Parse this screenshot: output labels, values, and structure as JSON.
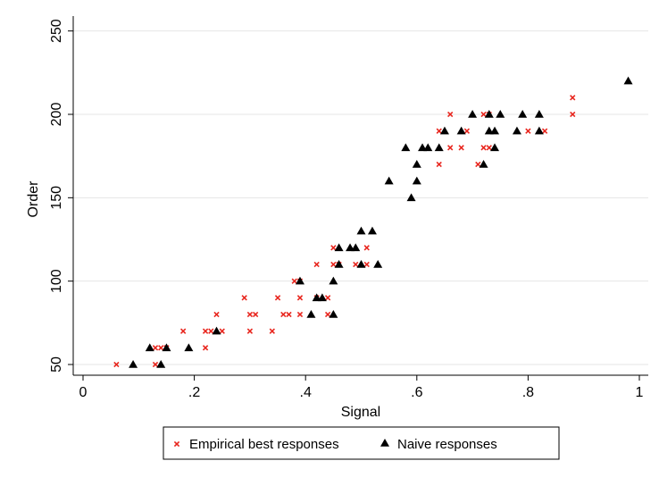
{
  "chart_data": {
    "type": "scatter",
    "xlabel": "Signal",
    "ylabel": "Order",
    "xlim": [
      0,
      1
    ],
    "ylim": [
      45,
      255
    ],
    "x_ticks": [
      0,
      0.2,
      0.4,
      0.6,
      0.8,
      1
    ],
    "x_tick_labels": [
      "0",
      ".2",
      ".4",
      ".6",
      ".8",
      "1"
    ],
    "y_ticks": [
      50,
      100,
      150,
      200,
      250
    ],
    "y_tick_labels": [
      "50",
      "100",
      "150",
      "200",
      "250"
    ],
    "grid": "horizontal",
    "legend_position": "bottom",
    "series": [
      {
        "name": "Empirical best responses",
        "marker": "x",
        "color": "#e8261e",
        "points": [
          [
            0.06,
            50
          ],
          [
            0.13,
            50
          ],
          [
            0.13,
            60
          ],
          [
            0.14,
            60
          ],
          [
            0.15,
            60
          ],
          [
            0.18,
            70
          ],
          [
            0.22,
            60
          ],
          [
            0.22,
            70
          ],
          [
            0.23,
            70
          ],
          [
            0.24,
            80
          ],
          [
            0.25,
            70
          ],
          [
            0.29,
            90
          ],
          [
            0.3,
            70
          ],
          [
            0.3,
            80
          ],
          [
            0.31,
            80
          ],
          [
            0.34,
            70
          ],
          [
            0.35,
            90
          ],
          [
            0.36,
            80
          ],
          [
            0.37,
            80
          ],
          [
            0.38,
            100
          ],
          [
            0.39,
            90
          ],
          [
            0.39,
            100
          ],
          [
            0.39,
            80
          ],
          [
            0.42,
            110
          ],
          [
            0.42,
            90
          ],
          [
            0.44,
            90
          ],
          [
            0.44,
            80
          ],
          [
            0.45,
            120
          ],
          [
            0.45,
            110
          ],
          [
            0.46,
            110
          ],
          [
            0.49,
            110
          ],
          [
            0.51,
            120
          ],
          [
            0.51,
            110
          ],
          [
            0.64,
            190
          ],
          [
            0.64,
            170
          ],
          [
            0.66,
            200
          ],
          [
            0.66,
            180
          ],
          [
            0.68,
            180
          ],
          [
            0.69,
            190
          ],
          [
            0.71,
            170
          ],
          [
            0.72,
            200
          ],
          [
            0.72,
            180
          ],
          [
            0.73,
            180
          ],
          [
            0.73,
            200
          ],
          [
            0.8,
            190
          ],
          [
            0.83,
            190
          ],
          [
            0.88,
            210
          ],
          [
            0.88,
            200
          ]
        ]
      },
      {
        "name": "Naive responses",
        "marker": "triangle",
        "color": "#000000",
        "points": [
          [
            0.09,
            50
          ],
          [
            0.12,
            60
          ],
          [
            0.14,
            50
          ],
          [
            0.15,
            60
          ],
          [
            0.19,
            60
          ],
          [
            0.24,
            70
          ],
          [
            0.39,
            100
          ],
          [
            0.41,
            80
          ],
          [
            0.42,
            90
          ],
          [
            0.43,
            90
          ],
          [
            0.45,
            80
          ],
          [
            0.45,
            100
          ],
          [
            0.46,
            120
          ],
          [
            0.46,
            110
          ],
          [
            0.48,
            120
          ],
          [
            0.49,
            120
          ],
          [
            0.5,
            110
          ],
          [
            0.5,
            130
          ],
          [
            0.52,
            130
          ],
          [
            0.53,
            110
          ],
          [
            0.55,
            160
          ],
          [
            0.58,
            180
          ],
          [
            0.59,
            150
          ],
          [
            0.6,
            160
          ],
          [
            0.6,
            170
          ],
          [
            0.61,
            180
          ],
          [
            0.62,
            180
          ],
          [
            0.64,
            180
          ],
          [
            0.65,
            190
          ],
          [
            0.68,
            190
          ],
          [
            0.7,
            200
          ],
          [
            0.72,
            170
          ],
          [
            0.73,
            200
          ],
          [
            0.73,
            190
          ],
          [
            0.74,
            190
          ],
          [
            0.74,
            180
          ],
          [
            0.75,
            200
          ],
          [
            0.78,
            190
          ],
          [
            0.79,
            200
          ],
          [
            0.82,
            200
          ],
          [
            0.82,
            190
          ],
          [
            0.98,
            220
          ]
        ]
      }
    ]
  }
}
